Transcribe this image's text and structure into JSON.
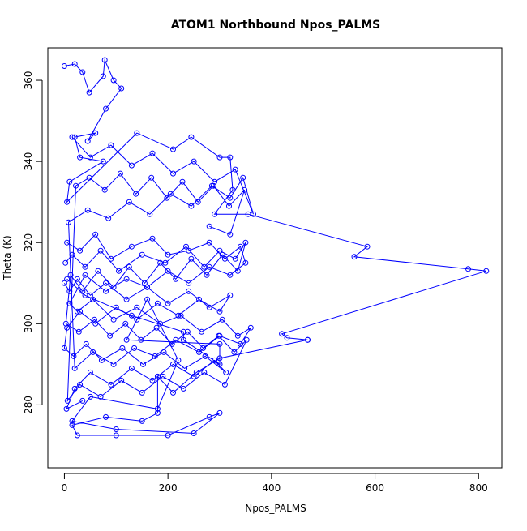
{
  "chart_data": {
    "type": "line",
    "title": "ATOM1 Northbound Npos_PALMS",
    "xlabel": "Npos_PALMS",
    "ylabel": "Theta (K)",
    "xlim": [
      -32,
      845
    ],
    "ylim": [
      264.5,
      368
    ],
    "xticks": [
      0,
      200,
      400,
      600,
      800
    ],
    "yticks": [
      280,
      300,
      320,
      340,
      360
    ],
    "grid": false,
    "line_color": "#0000ff",
    "marker": "open-circle",
    "series": [
      {
        "x": [
          0,
          20,
          35,
          48,
          75,
          78,
          95,
          110,
          80,
          45,
          60,
          20,
          30,
          75,
          10,
          5,
          140,
          210,
          245,
          300,
          320,
          325,
          290,
          355,
          585,
          560,
          780,
          815,
          420,
          430,
          470,
          470,
          300,
          255,
          210,
          180,
          180,
          150,
          80,
          15,
          25,
          100,
          200,
          280,
          300,
          250,
          100,
          15,
          50,
          180,
          220,
          160,
          120,
          300,
          300,
          230,
          230,
          130,
          40,
          5
        ],
        "y": [
          363.5,
          364,
          362,
          357,
          361,
          365,
          360,
          358,
          353,
          345,
          347,
          346,
          341,
          340,
          335,
          330,
          347,
          343,
          346,
          341,
          341,
          333,
          327,
          327,
          319,
          316.5,
          313.5,
          313,
          297.5,
          296.5,
          296,
          296,
          291.5,
          288,
          283,
          287,
          278,
          276,
          277,
          275,
          272.5,
          272.5,
          272.5,
          277,
          278,
          273,
          274,
          276,
          282,
          279,
          291,
          306,
          296,
          295,
          290,
          296,
          298,
          302,
          307,
          311
        ]
      },
      {
        "x": [
          5,
          30,
          60,
          90,
          130,
          170,
          200,
          240,
          280,
          310,
          340,
          350,
          320,
          280,
          240,
          200,
          160,
          120,
          80,
          40,
          10,
          25,
          55,
          95,
          140,
          185,
          225,
          265,
          305,
          335,
          360,
          340,
          300,
          260,
          215,
          175,
          135,
          95,
          55,
          20,
          8,
          45,
          85,
          125,
          165,
          205,
          245,
          285,
          320,
          345,
          365,
          330,
          290,
          250,
          210,
          170,
          130,
          90,
          50,
          15
        ],
        "y": [
          320,
          318,
          322,
          316,
          319,
          321,
          317,
          318,
          320,
          316,
          319,
          315,
          312,
          314,
          310,
          313,
          309,
          311,
          308,
          312,
          305,
          303,
          306,
          301,
          304,
          300,
          302,
          298,
          301,
          297,
          299,
          295,
          297,
          293,
          296,
          292,
          294,
          290,
          293,
          289,
          325,
          328,
          326,
          330,
          327,
          332,
          329,
          334,
          331,
          336,
          327,
          338,
          335,
          340,
          337,
          342,
          339,
          344,
          341,
          346
        ]
      },
      {
        "x": [
          2,
          15,
          40,
          70,
          105,
          150,
          195,
          235,
          270,
          300,
          330,
          350,
          335,
          305,
          275,
          245,
          215,
          185,
          155,
          125,
          95,
          65,
          35,
          12,
          3,
          28,
          58,
          88,
          118,
          148,
          178,
          208,
          238,
          268,
          298,
          328,
          352,
          310,
          270,
          230,
          190,
          150,
          110,
          70,
          30,
          6,
          22,
          48,
          78,
          108,
          138,
          168,
          198,
          228,
          258,
          288,
          318,
          348,
          320,
          280
        ],
        "y": [
          315,
          317,
          314,
          318,
          313,
          317,
          315,
          319,
          314,
          318,
          316,
          320,
          313,
          317,
          312,
          316,
          311,
          315,
          310,
          314,
          309,
          313,
          308,
          312,
          300,
          298,
          301,
          297,
          300,
          296,
          299,
          295,
          298,
          294,
          297,
          293,
          296,
          285,
          288,
          284,
          287,
          283,
          286,
          282,
          285,
          281,
          334,
          336,
          333,
          337,
          332,
          336,
          331,
          335,
          330,
          334,
          329,
          333,
          322,
          324
        ]
      },
      {
        "x": [
          0,
          10,
          25,
          50,
          80,
          120,
          160,
          200,
          240,
          280,
          320,
          300,
          260,
          220,
          180,
          140,
          100,
          60,
          30,
          5,
          0,
          18,
          42,
          72,
          112,
          152,
          192,
          232,
          272,
          312,
          290,
          250,
          210,
          170,
          130,
          90,
          50,
          20,
          4,
          35
        ],
        "y": [
          310,
          308,
          311,
          307,
          310,
          306,
          309,
          305,
          308,
          304,
          307,
          303,
          306,
          302,
          305,
          301,
          304,
          300,
          303,
          299,
          294,
          292,
          295,
          291,
          294,
          290,
          293,
          289,
          292,
          288,
          291,
          287,
          290,
          286,
          289,
          285,
          288,
          284,
          279,
          281
        ]
      }
    ]
  }
}
